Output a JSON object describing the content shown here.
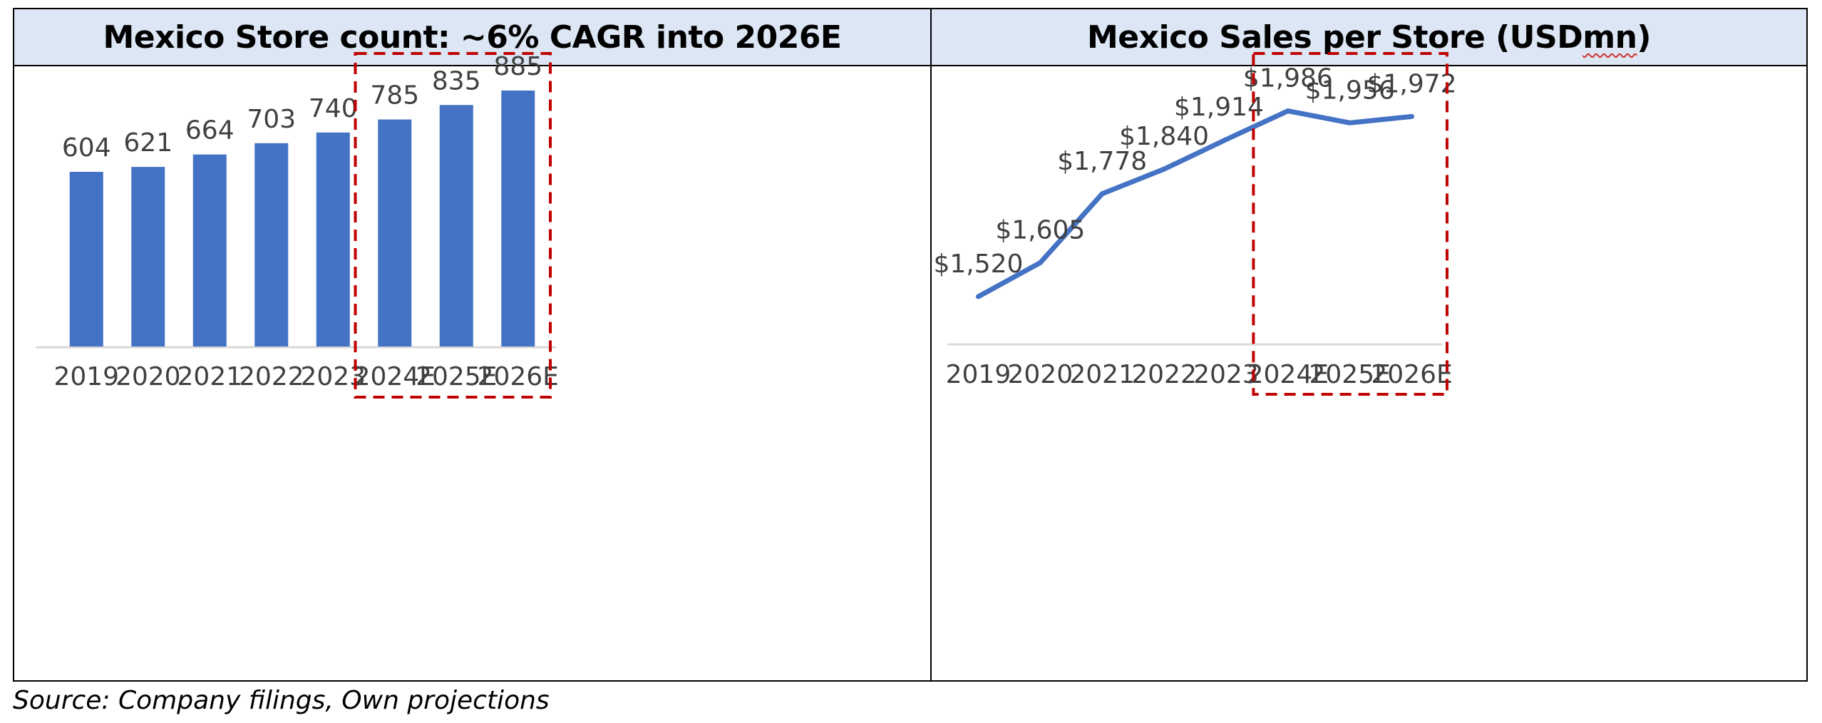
{
  "source_note": "Source: Company filings, Own projections",
  "colors": {
    "bar": "#4472c4",
    "line": "#4472c4",
    "highlight_box": "#c00000",
    "header_bg": "#dce6f4",
    "axis": "#d9d9d9",
    "label": "#404040"
  },
  "chart_data": [
    {
      "type": "bar",
      "title": "Mexico Store count: ~6% CAGR into 2026E",
      "categories": [
        "2019",
        "2020",
        "2021",
        "2022",
        "2023",
        "2024E",
        "2025E",
        "2026E"
      ],
      "values": [
        604,
        621,
        664,
        703,
        740,
        785,
        835,
        885
      ],
      "data_labels": [
        "604",
        "621",
        "664",
        "703",
        "740",
        "785",
        "835",
        "885"
      ],
      "xlabel": "",
      "ylabel": "",
      "ylim": [
        0,
        885
      ],
      "grid": false,
      "legend": "none",
      "highlight_categories": [
        "2024E",
        "2025E",
        "2026E"
      ]
    },
    {
      "type": "line",
      "title_main": "Mexico Sales per Store (USD ",
      "title_unit": "mn",
      "title_end": ")",
      "categories": [
        "2019",
        "2020",
        "2021",
        "2022",
        "2023",
        "2024E",
        "2025E",
        "2026E"
      ],
      "values": [
        1520,
        1605,
        1778,
        1840,
        1914,
        1986,
        1956,
        1972
      ],
      "data_labels": [
        "$1,520",
        "$1,605",
        "$1,778",
        "$1,840",
        "$1,914",
        "$1,986",
        "$1,956",
        "$1,972"
      ],
      "xlabel": "",
      "ylabel": "",
      "ylim": [
        1400,
        2080
      ],
      "grid": false,
      "legend": "none",
      "highlight_categories": [
        "2024E",
        "2025E",
        "2026E"
      ]
    }
  ]
}
